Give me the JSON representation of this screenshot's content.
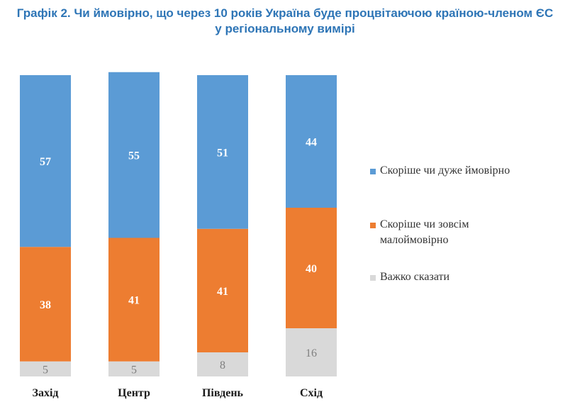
{
  "title_line1": "Графік 2. Чи ймовірно, що через 10 років Україна буде процвітаючою країною-членом ЄС",
  "title_line2": "у регіональному вимірі",
  "chart_data": {
    "type": "stacked-bar",
    "categories": [
      "Захід",
      "Центр",
      "Південь",
      "Схід"
    ],
    "series": [
      {
        "name": "Скоріше чи дуже ймовірно",
        "color": "#5b9bd5",
        "values": [
          57,
          55,
          51,
          44
        ]
      },
      {
        "name": "Скоріше чи зовсім малоймовірно",
        "color": "#ed7d31",
        "values": [
          38,
          41,
          41,
          40
        ]
      },
      {
        "name": "Важко сказати",
        "color": "#d9d9d9",
        "values": [
          5,
          5,
          8,
          16
        ]
      }
    ],
    "ylim": [
      0,
      100
    ],
    "stack_order": "bottom-to-top: Важко сказати, Скоріше чи зовсім малоймовірно, Скоріше чи дуже ймовірно"
  },
  "legend": {
    "items": [
      {
        "label_line1": "Скоріше чи дуже ймовірно",
        "label_line2": ""
      },
      {
        "label_line1": "Скоріше чи зовсім",
        "label_line2": "малоймовірно"
      },
      {
        "label_line1": "Важко сказати",
        "label_line2": ""
      }
    ]
  }
}
